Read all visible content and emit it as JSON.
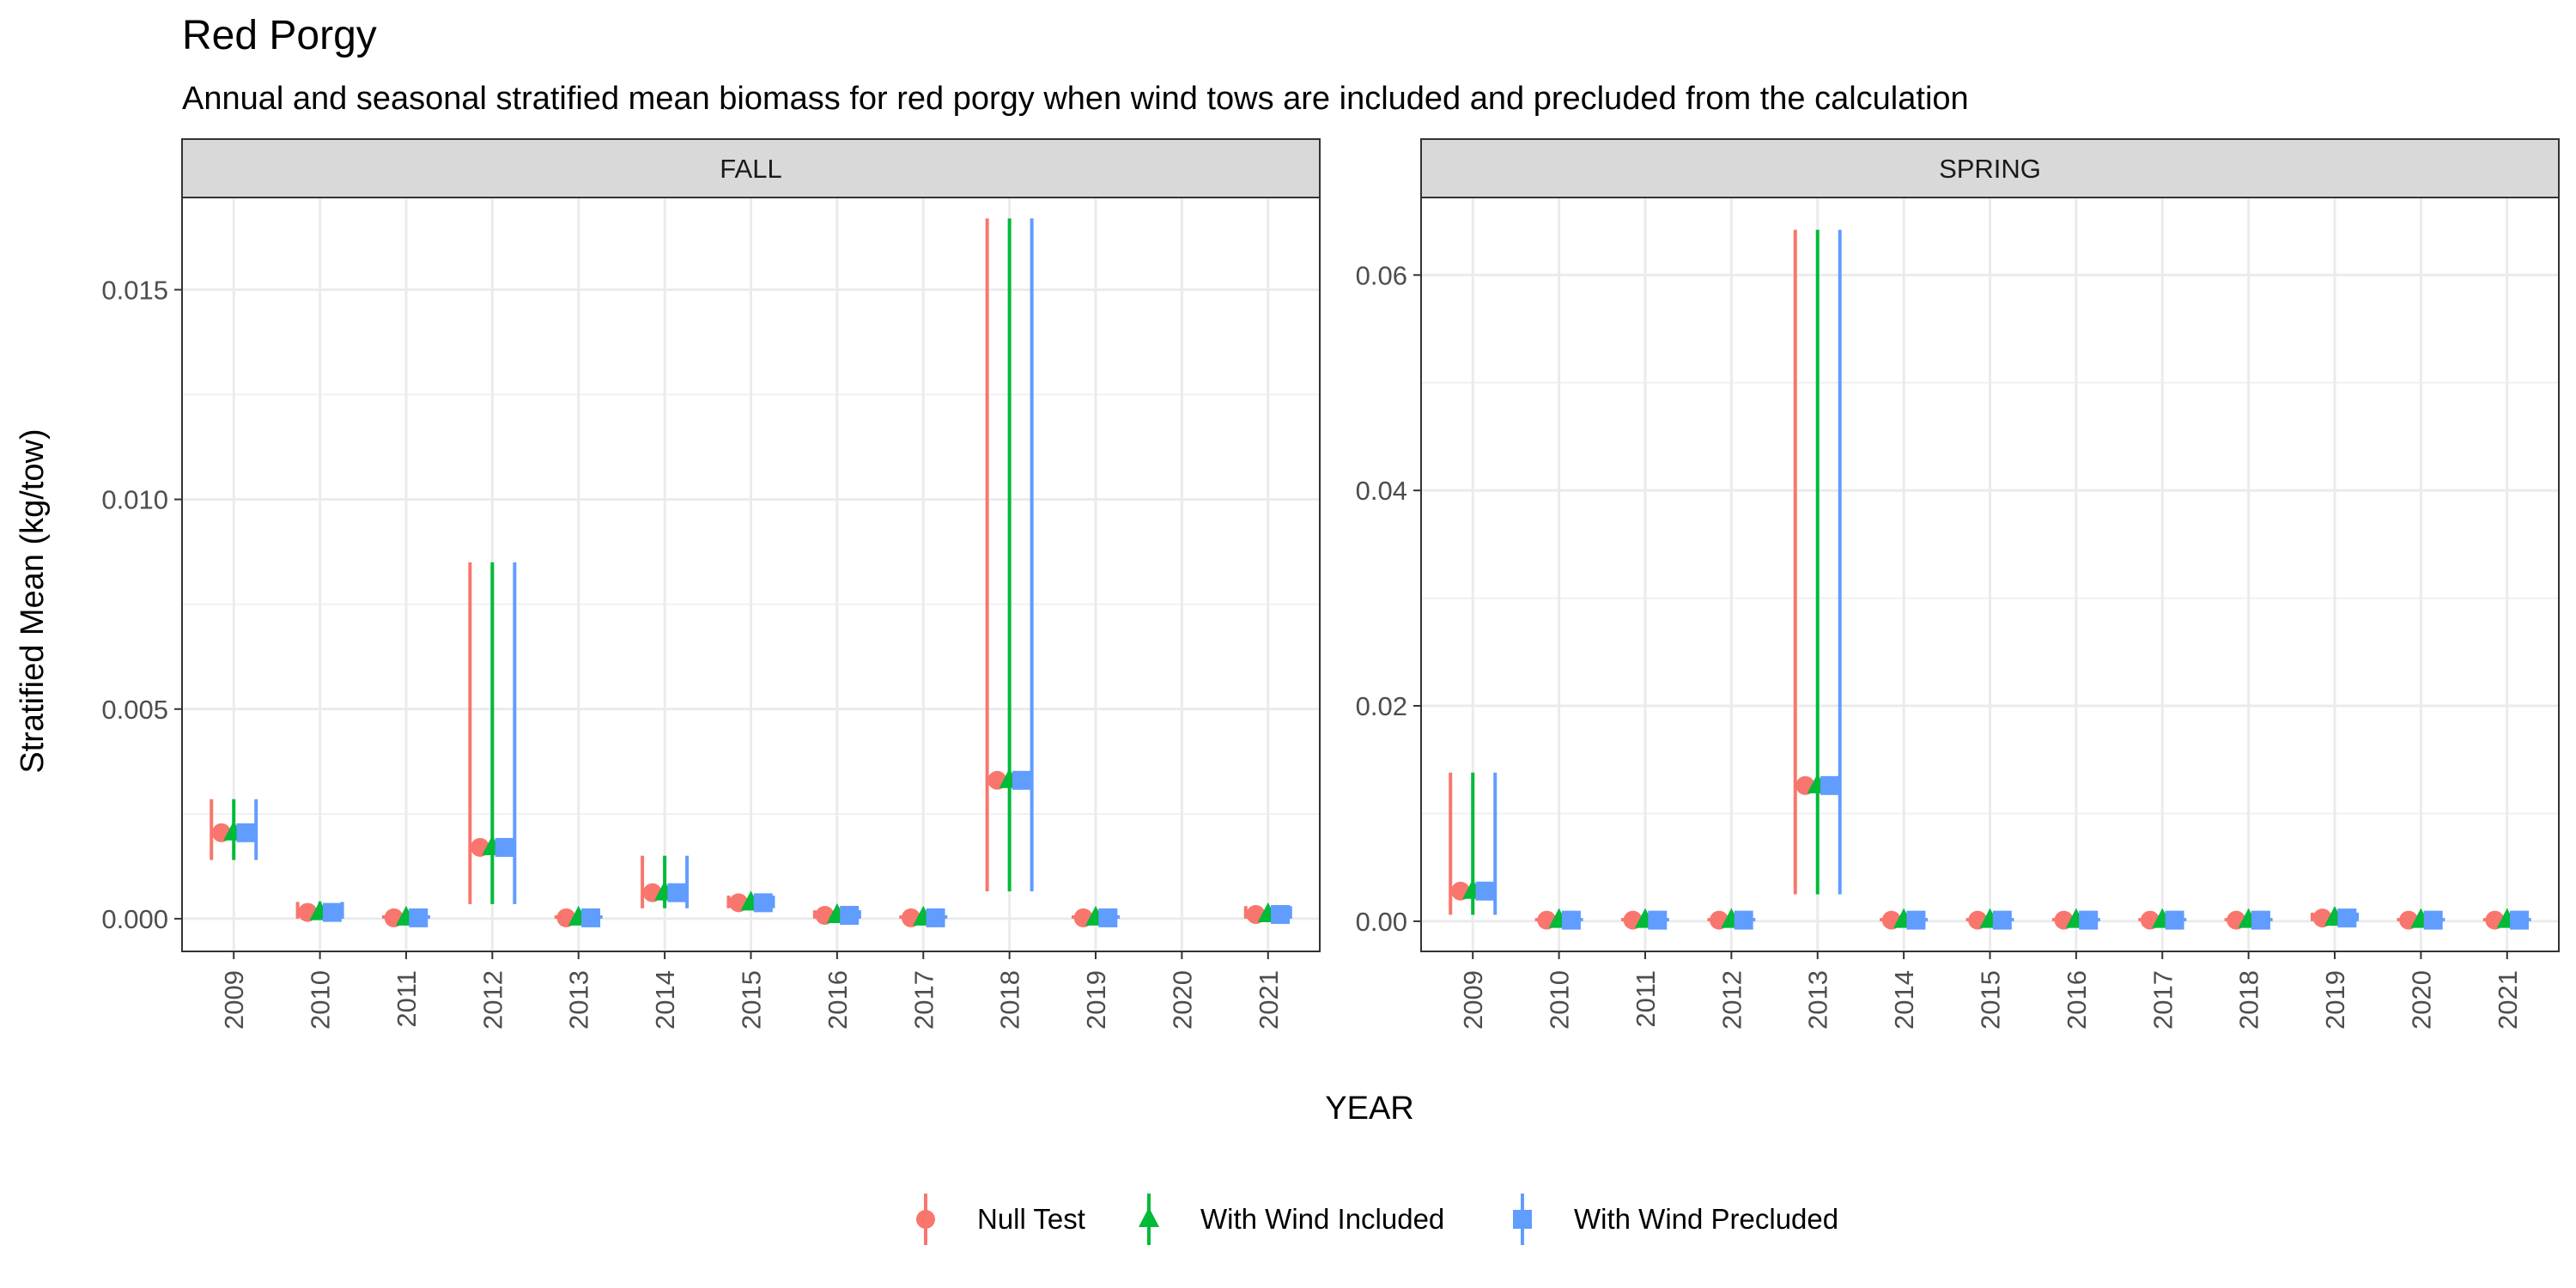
{
  "title": "Red Porgy",
  "subtitle": "Annual and seasonal stratified mean biomass for red porgy when wind tows are included and precluded from the calculation",
  "chart_data": {
    "type": "scatter",
    "xlabel": "YEAR",
    "ylabel": "Stratified Mean (kg/tow)",
    "grid": true,
    "legend_position": "bottom",
    "categories": [
      "2009",
      "2010",
      "2011",
      "2012",
      "2013",
      "2014",
      "2015",
      "2016",
      "2017",
      "2018",
      "2019",
      "2020",
      "2021"
    ],
    "series_meta": [
      {
        "name": "Null Test",
        "color": "#F8766D",
        "shape": "circle"
      },
      {
        "name": "With Wind Included",
        "color": "#00BA38",
        "shape": "triangle"
      },
      {
        "name": "With Wind Precluded",
        "color": "#619CFF",
        "shape": "square"
      }
    ],
    "panels": [
      {
        "strip": "FALL",
        "ylim": [
          -0.00078,
          0.0172
        ],
        "yticks": [
          0.0,
          0.005,
          0.01,
          0.015
        ],
        "ytick_labels": [
          "0.000",
          "0.005",
          "0.010",
          "0.015"
        ],
        "points": [
          {
            "year": "2009",
            "mean": 0.00205,
            "low": 0.0014,
            "high": 0.00285
          },
          {
            "year": "2010",
            "mean": 0.00015,
            "low": 0.0,
            "high": 0.0004
          },
          {
            "year": "2011",
            "mean": 2e-05,
            "low": 0.0,
            "high": 8e-05
          },
          {
            "year": "2012",
            "mean": 0.0017,
            "low": 0.00035,
            "high": 0.0085
          },
          {
            "year": "2013",
            "mean": 2e-05,
            "low": 0.0,
            "high": 8e-05
          },
          {
            "year": "2014",
            "mean": 0.00062,
            "low": 0.00025,
            "high": 0.0015
          },
          {
            "year": "2015",
            "mean": 0.00038,
            "low": 0.00025,
            "high": 0.00055
          },
          {
            "year": "2016",
            "mean": 8e-05,
            "low": 0.0,
            "high": 0.0002
          },
          {
            "year": "2017",
            "mean": 2e-05,
            "low": 0.0,
            "high": 8e-05
          },
          {
            "year": "2018",
            "mean": 0.0033,
            "low": 0.00065,
            "high": 0.0167
          },
          {
            "year": "2019",
            "mean": 2e-05,
            "low": 0.0,
            "high": 8e-05
          },
          {
            "year": "2021",
            "mean": 0.0001,
            "low": 0.0,
            "high": 0.0003
          }
        ]
      },
      {
        "strip": "SPRING",
        "ylim": [
          -0.0028,
          0.0672
        ],
        "yticks": [
          0.0,
          0.02,
          0.04,
          0.06
        ],
        "ytick_labels": [
          "0.00",
          "0.02",
          "0.04",
          "0.06"
        ],
        "points": [
          {
            "year": "2009",
            "mean": 0.0028,
            "low": 0.0006,
            "high": 0.0138
          },
          {
            "year": "2010",
            "mean": 0.0001,
            "low": 0.0,
            "high": 0.0003
          },
          {
            "year": "2011",
            "mean": 0.0001,
            "low": 0.0,
            "high": 0.0003
          },
          {
            "year": "2012",
            "mean": 0.0001,
            "low": 0.0,
            "high": 0.0003
          },
          {
            "year": "2013",
            "mean": 0.0126,
            "low": 0.0025,
            "high": 0.0642
          },
          {
            "year": "2014",
            "mean": 0.0001,
            "low": 0.0,
            "high": 0.0003
          },
          {
            "year": "2015",
            "mean": 0.0001,
            "low": 0.0,
            "high": 0.0003
          },
          {
            "year": "2016",
            "mean": 0.0001,
            "low": 0.0,
            "high": 0.0003
          },
          {
            "year": "2017",
            "mean": 0.0001,
            "low": 0.0,
            "high": 0.0003
          },
          {
            "year": "2018",
            "mean": 0.0001,
            "low": 0.0,
            "high": 0.0003
          },
          {
            "year": "2019",
            "mean": 0.0003,
            "low": 0.0,
            "high": 0.0008
          },
          {
            "year": "2020",
            "mean": 0.0001,
            "low": 0.0,
            "high": 0.0003
          },
          {
            "year": "2021",
            "mean": 0.0001,
            "low": 0.0,
            "high": 0.0003
          }
        ]
      }
    ]
  }
}
